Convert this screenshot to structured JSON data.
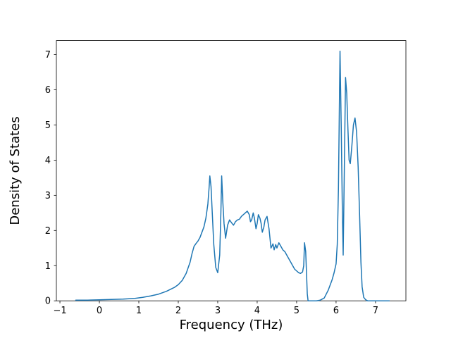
{
  "chart_data": {
    "type": "line",
    "title": "",
    "xlabel": "Frequency (THz)",
    "ylabel": "Density of States",
    "xlim": [
      -1.09,
      7.77
    ],
    "ylim": [
      0,
      7.4
    ],
    "grid": false,
    "legend": null,
    "line_color": "#1f77b4",
    "x_axis": {
      "tick_values": [
        -1,
        0,
        1,
        2,
        3,
        4,
        5,
        6,
        7
      ],
      "tick_labels": [
        "−1",
        "0",
        "1",
        "2",
        "3",
        "4",
        "5",
        "6",
        "7"
      ]
    },
    "y_axis": {
      "tick_values": [
        0,
        1,
        2,
        3,
        4,
        5,
        6,
        7
      ],
      "tick_labels": [
        "0",
        "1",
        "2",
        "3",
        "4",
        "5",
        "6",
        "7"
      ]
    },
    "x": [
      -0.6,
      -0.3,
      0.0,
      0.3,
      0.6,
      0.9,
      1.1,
      1.3,
      1.5,
      1.7,
      1.9,
      2.0,
      2.1,
      2.2,
      2.3,
      2.35,
      2.4,
      2.45,
      2.5,
      2.55,
      2.6,
      2.65,
      2.7,
      2.75,
      2.78,
      2.8,
      2.83,
      2.87,
      2.9,
      2.95,
      3.0,
      3.05,
      3.08,
      3.1,
      3.13,
      3.16,
      3.2,
      3.25,
      3.3,
      3.35,
      3.4,
      3.45,
      3.5,
      3.55,
      3.6,
      3.65,
      3.7,
      3.75,
      3.8,
      3.83,
      3.86,
      3.9,
      3.93,
      3.97,
      4.0,
      4.03,
      4.07,
      4.1,
      4.13,
      4.17,
      4.2,
      4.25,
      4.3,
      4.35,
      4.4,
      4.43,
      4.47,
      4.5,
      4.55,
      4.6,
      4.65,
      4.7,
      4.75,
      4.8,
      4.85,
      4.9,
      4.95,
      5.0,
      5.05,
      5.1,
      5.15,
      5.18,
      5.2,
      5.23,
      5.25,
      5.27,
      5.29,
      5.4,
      5.5,
      5.6,
      5.7,
      5.8,
      5.9,
      5.95,
      6.0,
      6.03,
      6.06,
      6.1,
      6.13,
      6.16,
      6.18,
      6.21,
      6.24,
      6.27,
      6.3,
      6.33,
      6.36,
      6.4,
      6.44,
      6.48,
      6.52,
      6.56,
      6.6,
      6.63,
      6.66,
      6.7,
      6.75,
      6.8,
      7.0,
      7.2,
      7.35
    ],
    "y": [
      0.02,
      0.02,
      0.03,
      0.04,
      0.05,
      0.07,
      0.1,
      0.14,
      0.19,
      0.27,
      0.38,
      0.46,
      0.58,
      0.78,
      1.1,
      1.35,
      1.55,
      1.63,
      1.7,
      1.8,
      1.95,
      2.1,
      2.35,
      2.75,
      3.2,
      3.55,
      3.25,
      2.3,
      1.6,
      0.95,
      0.8,
      1.3,
      2.5,
      3.55,
      2.8,
      2.2,
      1.78,
      2.15,
      2.3,
      2.22,
      2.15,
      2.25,
      2.3,
      2.32,
      2.4,
      2.45,
      2.5,
      2.55,
      2.45,
      2.25,
      2.3,
      2.5,
      2.35,
      2.05,
      2.2,
      2.45,
      2.35,
      2.2,
      1.95,
      2.1,
      2.3,
      2.4,
      2.05,
      1.5,
      1.62,
      1.45,
      1.6,
      1.5,
      1.65,
      1.55,
      1.45,
      1.4,
      1.3,
      1.2,
      1.1,
      1.0,
      0.9,
      0.85,
      0.8,
      0.78,
      0.82,
      1.0,
      1.65,
      1.4,
      0.8,
      0.2,
      0.0,
      0.0,
      0.0,
      0.02,
      0.08,
      0.3,
      0.6,
      0.8,
      1.05,
      1.6,
      3.2,
      7.1,
      5.0,
      2.5,
      1.3,
      3.8,
      6.35,
      5.9,
      4.9,
      4.0,
      3.9,
      4.4,
      5.0,
      5.2,
      4.8,
      3.8,
      2.3,
      1.1,
      0.4,
      0.1,
      0.03,
      0.0,
      0.0,
      0.0,
      0.0
    ]
  }
}
